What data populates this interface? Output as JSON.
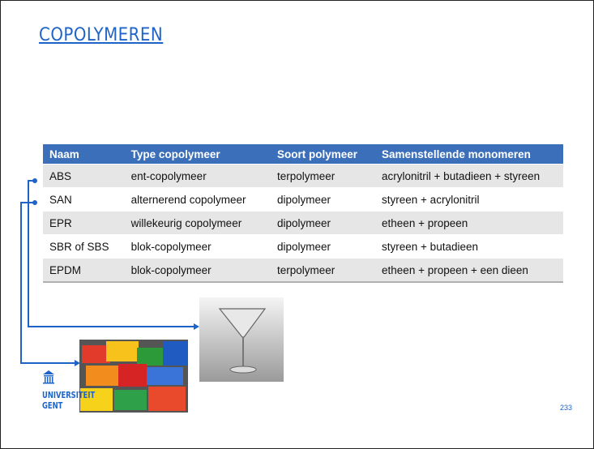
{
  "header": {
    "title": "COPOLYMEREN"
  },
  "table": {
    "columns": [
      "Naam",
      "Type copolymeer",
      "Soort polymeer",
      "Samenstellende monomeren"
    ],
    "rows": [
      [
        "ABS",
        "ent-copolymeer",
        "terpolymeer",
        "acrylonitril + butadieen + styreen"
      ],
      [
        "SAN",
        "alternerend copolymeer",
        "dipolymeer",
        "styreen + acrylonitril"
      ],
      [
        "EPR",
        "willekeurig copolymeer",
        "dipolymeer",
        "etheen + propeen"
      ],
      [
        "SBR of SBS",
        "blok-copolymeer",
        "dipolymeer",
        "styreen + butadieen"
      ],
      [
        "EPDM",
        "blok-copolymeer",
        "terpolymeer",
        "etheen + propeen + een dieen"
      ]
    ]
  },
  "logo": {
    "line1": "UNIVERSITEIT",
    "line2": "GENT"
  },
  "footer": {
    "page_number": "233"
  }
}
